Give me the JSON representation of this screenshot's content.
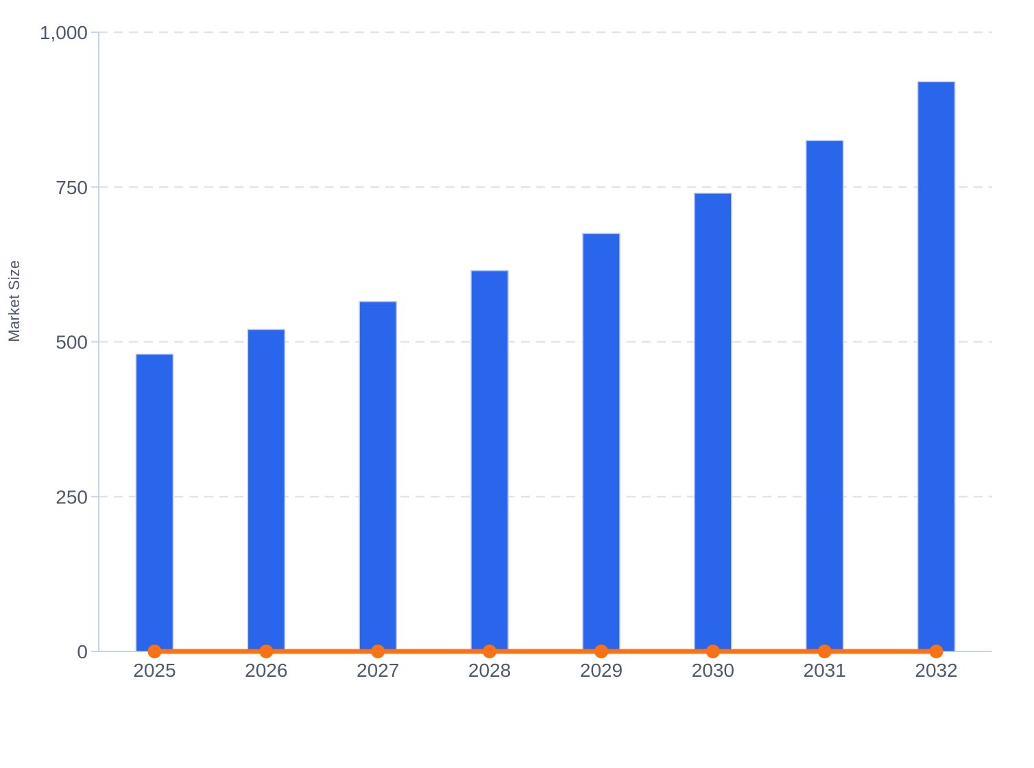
{
  "chart_data": {
    "type": "bar",
    "title": "",
    "xlabel": "",
    "ylabel": "Market Size",
    "categories": [
      "2025",
      "2026",
      "2027",
      "2028",
      "2029",
      "2030",
      "2031",
      "2032"
    ],
    "series": [
      {
        "name": "market-size-bars",
        "type": "bar",
        "color": "#2a66ec",
        "values": [
          480,
          520,
          565,
          615,
          675,
          740,
          825,
          920
        ]
      },
      {
        "name": "zero-baseline-line",
        "type": "line",
        "color": "#f97316",
        "values": [
          0,
          0,
          0,
          0,
          0,
          0,
          0,
          0
        ]
      }
    ],
    "ylim": [
      0,
      1000
    ],
    "yticks": [
      0,
      250,
      500,
      750,
      1000
    ],
    "ytick_labels": [
      "0",
      "250",
      "500",
      "750",
      "1,000"
    ],
    "grid": "horizontal dashed gridlines at 250/500/750/1000",
    "legend_position": "none"
  },
  "colors": {
    "bar_fill": "#2a66ec",
    "bar_stroke": "#b9c9f3",
    "line": "#f97316",
    "axis": "#c7d2f0",
    "gridline": "#e2e4e9",
    "tick_text": "#4e586c",
    "background": "#ffffff"
  }
}
